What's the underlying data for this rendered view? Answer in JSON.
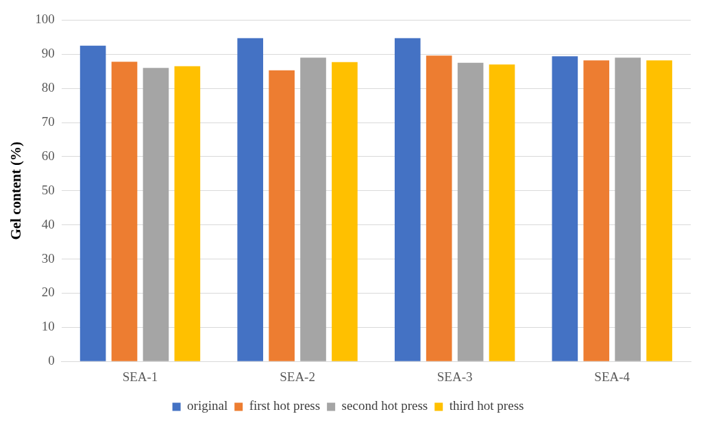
{
  "chart_data": {
    "type": "bar",
    "ylabel": "Gel content (%)",
    "categories": [
      "SEA-1",
      "SEA-2",
      "SEA-3",
      "SEA-4"
    ],
    "series": [
      {
        "name": "original",
        "color": "#4472c4",
        "values": [
          92.5,
          94.7,
          94.7,
          89.4
        ]
      },
      {
        "name": "first hot press",
        "color": "#ed7d31",
        "values": [
          87.8,
          85.3,
          89.6,
          88.2
        ]
      },
      {
        "name": "second hot press",
        "color": "#a5a5a5",
        "values": [
          86,
          89,
          87.5,
          89
        ]
      },
      {
        "name": "third hot press",
        "color": "#ffc000",
        "values": [
          86.5,
          87.7,
          87,
          88.2
        ]
      }
    ],
    "ylim": [
      0,
      100
    ],
    "yticks": [
      0,
      10,
      20,
      30,
      40,
      50,
      60,
      70,
      80,
      90,
      100
    ],
    "grid": "y",
    "legend": "bottom"
  }
}
